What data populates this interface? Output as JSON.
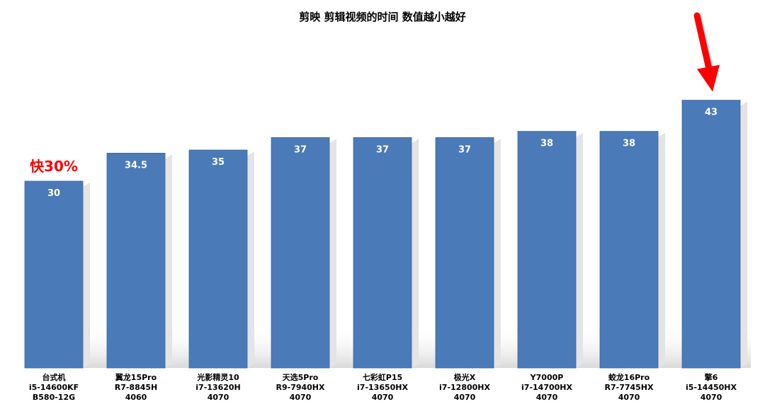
{
  "chart_data": {
    "type": "bar",
    "title": "剪映 剪辑视频的时间 数值越小越好",
    "xlabel": "",
    "ylabel": "",
    "ylim": [
      0,
      45
    ],
    "grid": false,
    "legend": "none",
    "categories": [
      [
        "台式机",
        "i5-14600KF",
        "B580-12G"
      ],
      [
        "翼龙15Pro",
        "R7-8845H",
        "4060"
      ],
      [
        "光影精灵10",
        "i7-13620H",
        "4070"
      ],
      [
        "天选5Pro",
        "R9-7940HX",
        "4070"
      ],
      [
        "七彩虹P15",
        "i7-13650HX",
        "4070"
      ],
      [
        "极光X",
        "i7-12800HX",
        "4070"
      ],
      [
        "Y7000P",
        "i7-14700HX",
        "4070"
      ],
      [
        "蛟龙16Pro",
        "R7-7745HX",
        "4070"
      ],
      [
        "擎6",
        "i5-14450HX",
        "4070"
      ]
    ],
    "values": [
      30,
      34.5,
      35,
      37,
      37,
      37,
      38,
      38,
      43
    ],
    "value_labels": [
      "30",
      "34.5",
      "35",
      "37",
      "37",
      "37",
      "38",
      "38",
      "43"
    ],
    "annotations": [
      {
        "text": "快30%",
        "category_index": 0,
        "color": "#ff0000"
      },
      {
        "type": "arrow",
        "category_index": 8,
        "color": "#ff0000"
      }
    ],
    "colors": {
      "bar": "#4a7ab8",
      "bar_edge": "#3a66a0",
      "shadow": "#e6e6e6",
      "annotation": "#ff0000"
    }
  }
}
